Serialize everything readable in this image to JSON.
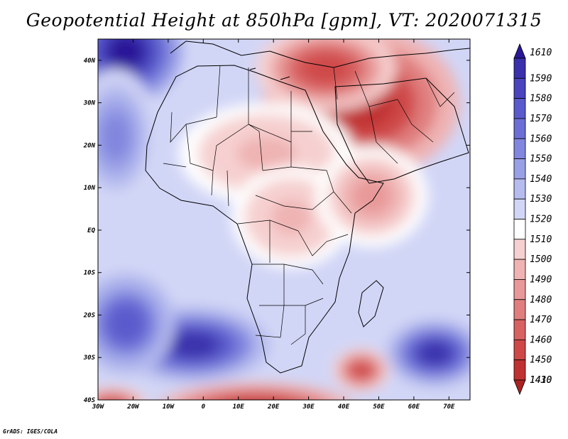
{
  "title": "Geopotential Height at 850hPa [gpm], VT: 2020071315",
  "credit": "GrADS: IGES/COLA",
  "map": {
    "lon_range": [
      -30,
      76
    ],
    "lat_range": [
      -40,
      45
    ],
    "lon_ticks": [
      {
        "value": -30,
        "label": "30W"
      },
      {
        "value": -20,
        "label": "20W"
      },
      {
        "value": -10,
        "label": "10W"
      },
      {
        "value": 0,
        "label": "0"
      },
      {
        "value": 10,
        "label": "10E"
      },
      {
        "value": 20,
        "label": "20E"
      },
      {
        "value": 30,
        "label": "30E"
      },
      {
        "value": 40,
        "label": "40E"
      },
      {
        "value": 50,
        "label": "50E"
      },
      {
        "value": 60,
        "label": "60E"
      },
      {
        "value": 70,
        "label": "70E"
      }
    ],
    "lat_ticks": [
      {
        "value": 40,
        "label": "40N"
      },
      {
        "value": 30,
        "label": "30N"
      },
      {
        "value": 20,
        "label": "20N"
      },
      {
        "value": 10,
        "label": "10N"
      },
      {
        "value": 0,
        "label": "EQ"
      },
      {
        "value": -10,
        "label": "10S"
      },
      {
        "value": -20,
        "label": "20S"
      },
      {
        "value": -30,
        "label": "30S"
      },
      {
        "value": -40,
        "label": "40S"
      }
    ],
    "field_features": [
      {
        "name": "north-atlantic-high",
        "lon": -22,
        "lat": 42,
        "value": 1605,
        "rx": 16,
        "ry": 12
      },
      {
        "name": "atlantic-high-north",
        "lon": -25,
        "lat": 22,
        "value": 1545,
        "rx": 12,
        "ry": 16
      },
      {
        "name": "south-atlantic-high",
        "lon": -3,
        "lat": -27,
        "value": 1590,
        "rx": 22,
        "ry": 9
      },
      {
        "name": "south-atlantic-high-west",
        "lon": -22,
        "lat": -22,
        "value": 1570,
        "rx": 14,
        "ry": 12
      },
      {
        "name": "indian-ocean-high",
        "lon": 66,
        "lat": -29,
        "value": 1590,
        "rx": 14,
        "ry": 8
      },
      {
        "name": "heat-low-arabia",
        "lon": 45,
        "lat": 30,
        "value": 1430,
        "rx": 28,
        "ry": 18
      },
      {
        "name": "heat-low-mediterranean-east",
        "lon": 35,
        "lat": 38,
        "value": 1440,
        "rx": 20,
        "ry": 10
      },
      {
        "name": "sahara-low",
        "lon": 18,
        "lat": 18,
        "value": 1490,
        "rx": 25,
        "ry": 12
      },
      {
        "name": "central-africa-low",
        "lon": 25,
        "lat": 3,
        "value": 1490,
        "rx": 17,
        "ry": 12
      },
      {
        "name": "east-africa-low",
        "lon": 48,
        "lat": 8,
        "value": 1480,
        "rx": 16,
        "ry": 12
      },
      {
        "name": "southern-ocean-low",
        "lon": 15,
        "lat": -42,
        "value": 1420,
        "rx": 28,
        "ry": 6
      },
      {
        "name": "madagascar-low",
        "lon": 45,
        "lat": -33,
        "value": 1440,
        "rx": 8,
        "ry": 5
      },
      {
        "name": "southwest-low",
        "lon": -26,
        "lat": -41,
        "value": 1440,
        "rx": 10,
        "ry": 4
      }
    ]
  },
  "colorbar": {
    "levels": [
      {
        "label": "1610",
        "color": "#2a1898"
      },
      {
        "label": "1590",
        "color": "#3a30ac"
      },
      {
        "label": "1580",
        "color": "#4a44bf"
      },
      {
        "label": "1570",
        "color": "#5a5acc"
      },
      {
        "label": "1560",
        "color": "#6c6ed6"
      },
      {
        "label": "1550",
        "color": "#8286de"
      },
      {
        "label": "1540",
        "color": "#9aa0e6"
      },
      {
        "label": "1530",
        "color": "#b6bcee"
      },
      {
        "label": "1520",
        "color": "#d2d6f6"
      },
      {
        "label": "1510",
        "color": "#ffffff"
      },
      {
        "label": "1500",
        "color": "#f6d0d0"
      },
      {
        "label": "1490",
        "color": "#efb3b3"
      },
      {
        "label": "1480",
        "color": "#e89898"
      },
      {
        "label": "1470",
        "color": "#e07e7e"
      },
      {
        "label": "1460",
        "color": "#d86262"
      },
      {
        "label": "1450",
        "color": "#cf4848"
      },
      {
        "label": "1430",
        "color": "#c03232"
      },
      {
        "label": "1410",
        "color": "#ab2222"
      }
    ]
  }
}
